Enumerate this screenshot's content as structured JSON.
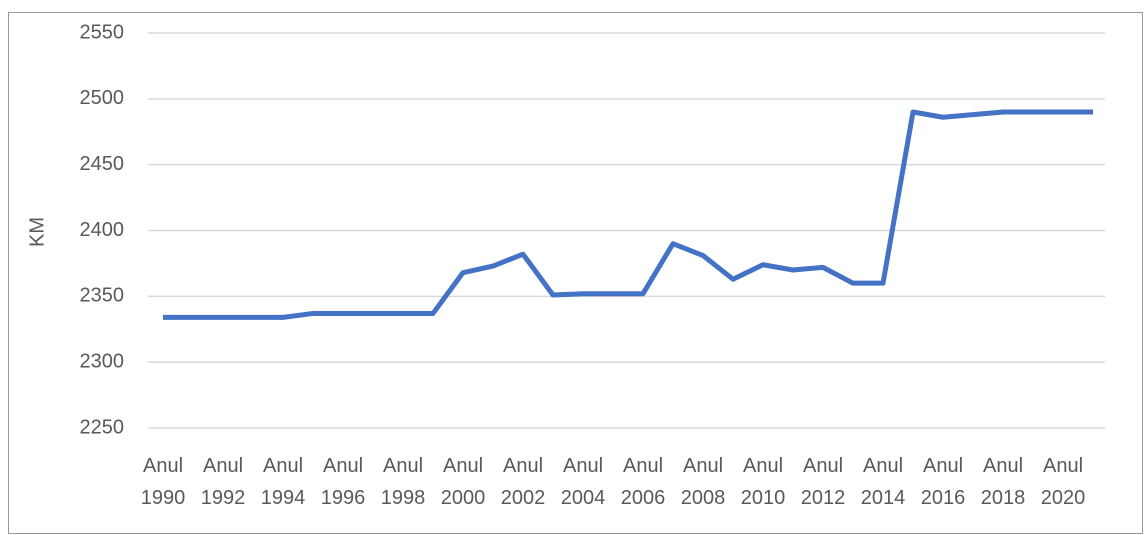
{
  "chart_data": {
    "type": "line",
    "y_label": "KM",
    "categories": [
      "Anul 1990",
      null,
      "Anul 1992",
      null,
      "Anul 1994",
      null,
      "Anul 1996",
      null,
      "Anul 1998",
      null,
      "Anul 2000",
      null,
      "Anul 2002",
      null,
      "Anul 2004",
      null,
      "Anul 2006",
      null,
      "Anul 2008",
      null,
      "Anul 2010",
      null,
      "Anul 2012",
      null,
      "Anul 2014",
      null,
      "Anul 2016",
      null,
      "Anul 2018",
      null,
      "Anul 2020",
      null
    ],
    "series": [
      {
        "name": "KM",
        "color": "#4472c4",
        "values": [
          2334,
          2334,
          2334,
          2334,
          2334,
          2337,
          2337,
          2337,
          2337,
          2337,
          2368,
          2373,
          2382,
          2351,
          2352,
          2352,
          2352,
          2390,
          2381,
          2363,
          2374,
          2370,
          2372,
          2360,
          2360,
          2490,
          2486,
          2488,
          2490,
          2490,
          2490,
          2490
        ]
      }
    ],
    "ylim": [
      2250,
      2550
    ],
    "yticks": [
      2250,
      2300,
      2350,
      2400,
      2450,
      2500,
      2550
    ],
    "grid": true
  }
}
